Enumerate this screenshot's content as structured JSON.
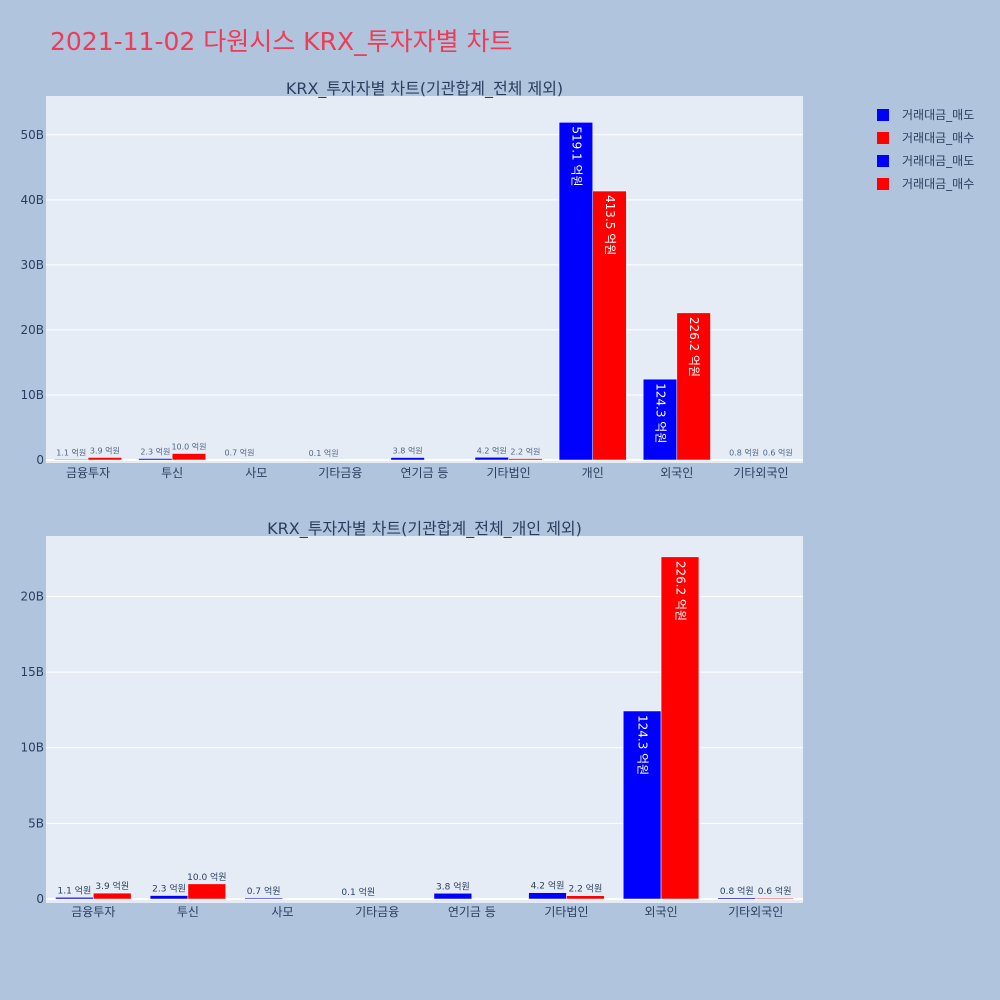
{
  "title": "2021-11-02 다원시스 KRX_투자자별 차트",
  "colors": {
    "sell": "#0000ff",
    "buy": "#ff0000",
    "plot_bg": "#e5ecf6",
    "paper_bg": "#b0c4de",
    "title": "#ef3b55"
  },
  "legend": [
    "거래대금_매도",
    "거래대금_매수",
    "거래대금_매도",
    "거래대금_매수"
  ],
  "chart_data": [
    {
      "type": "bar",
      "title": "KRX_투자자별 차트(기관합계_전체 제외)",
      "categories": [
        "금융투자",
        "투신",
        "사모",
        "기타금융",
        "연기금 등",
        "기타법인",
        "개인",
        "외국인",
        "기타외국인"
      ],
      "series": [
        {
          "name": "거래대금_매도",
          "values": [
            0.11,
            0.23,
            0.07,
            0.01,
            0.38,
            0.42,
            51.91,
            12.43,
            0.08
          ],
          "labels": [
            "1.1 억원",
            "2.3 억원",
            "0.7 억원",
            "0.1 억원",
            "3.8 억원",
            "4.2 억원",
            "519.1 억원",
            "124.3 억원",
            "0.8 억원"
          ]
        },
        {
          "name": "거래대금_매수",
          "values": [
            0.39,
            1.0,
            0,
            0,
            0,
            0.22,
            41.35,
            22.62,
            0.06
          ],
          "labels": [
            "3.9 억원",
            "10.0 억원",
            "",
            "",
            "",
            "2.2 억원",
            "413.5 억원",
            "226.2 억원",
            "0.6 억원"
          ]
        }
      ],
      "y_unit": "B",
      "yticks": [
        0,
        10,
        20,
        30,
        40,
        50
      ],
      "ylim": [
        0,
        55.5
      ],
      "grid": true
    },
    {
      "type": "bar",
      "title": "KRX_투자자별 차트(기관합계_전체_개인 제외)",
      "categories": [
        "금융투자",
        "투신",
        "사모",
        "기타금융",
        "연기금 등",
        "기타법인",
        "외국인",
        "기타외국인"
      ],
      "series": [
        {
          "name": "거래대금_매도",
          "values": [
            0.11,
            0.23,
            0.07,
            0.01,
            0.38,
            0.42,
            12.43,
            0.08
          ],
          "labels": [
            "1.1 억원",
            "2.3 억원",
            "0.7 억원",
            "0.1 억원",
            "3.8 억원",
            "4.2 억원",
            "124.3 억원",
            "0.8 억원"
          ]
        },
        {
          "name": "거래대금_매수",
          "values": [
            0.39,
            1.0,
            0,
            0,
            0,
            0.22,
            22.62,
            0.06
          ],
          "labels": [
            "3.9 억원",
            "10.0 억원",
            "",
            "",
            "",
            "2.2 억원",
            "226.2 억원",
            "0.6 억원"
          ]
        }
      ],
      "y_unit": "B",
      "yticks": [
        0,
        5,
        10,
        15,
        20
      ],
      "ylim": [
        0,
        23.8
      ],
      "grid": true
    }
  ]
}
